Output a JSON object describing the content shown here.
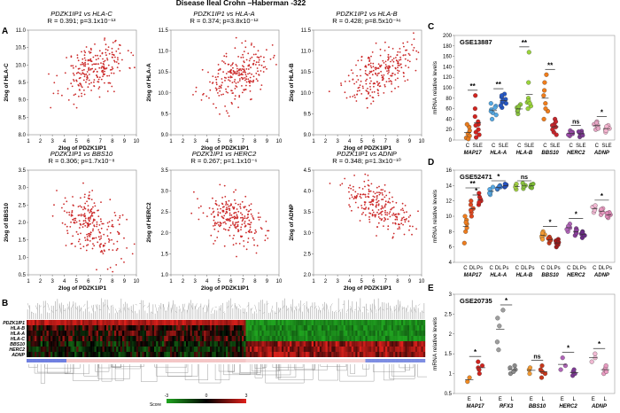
{
  "figure_title": "Disease Ileal Crohn –Haberman -322",
  "panel_letters": {
    "a": "A",
    "b": "B",
    "c": "C",
    "d": "D",
    "e": "E"
  },
  "colors": {
    "scatter": "#cc2a2a",
    "box_border": "#000000",
    "heat_high": "#e0201b",
    "heat_low": "#1fa51f",
    "heat_mid": "#000000"
  },
  "chart_data": [
    {
      "type": "scatter",
      "panel": "A",
      "x_label": "2log of PDZK1IP1",
      "plots": [
        {
          "pair": "PDZK1IP1 vs HLA-C",
          "stat": "R = 0.391; p=3.1x10⁻¹³",
          "ylabel": "2log of HLA-C",
          "xlabel": "2log of PDZK1IP1",
          "xlim": [
            1,
            10
          ],
          "ylim": [
            8.0,
            11.0
          ],
          "xticks": [
            "1",
            "2",
            "3",
            "4",
            "5",
            "6",
            "7",
            "8",
            "9",
            "10"
          ],
          "yticks": [
            "8.0",
            "8.5",
            "9.0",
            "9.5",
            "10.0",
            "10.5",
            "11.0"
          ],
          "slope": 0.13,
          "center": [
            6.5,
            9.9
          ],
          "spread": 0.38,
          "seed": 11
        },
        {
          "pair": "PDZK1IP1 vs HLA-A",
          "stat": "R = 0.374; p=3.8x10⁻¹²",
          "ylabel": "2log of HLA-A",
          "xlabel": "2log of PDZK1IP1",
          "xlim": [
            1,
            10
          ],
          "ylim": [
            9.0,
            11.5
          ],
          "xticks": [
            "1",
            "2",
            "3",
            "4",
            "5",
            "6",
            "7",
            "8",
            "9",
            "10"
          ],
          "yticks": [
            "9.0",
            "9.5",
            "10.0",
            "10.5",
            "11.0",
            "11.5"
          ],
          "slope": 0.1,
          "center": [
            6.5,
            10.4
          ],
          "spread": 0.3,
          "seed": 23
        },
        {
          "pair": "PDZK1IP1 vs HLA-B",
          "stat": "R = 0.428; p=8.5x10⁻¹⁶",
          "ylabel": "2log of HLA-B",
          "xlabel": "2log of PDZK1IP1",
          "xlim": [
            1,
            10
          ],
          "ylim": [
            9.0,
            11.5
          ],
          "xticks": [
            "1",
            "2",
            "3",
            "4",
            "5",
            "6",
            "7",
            "8",
            "9",
            "10"
          ],
          "yticks": [
            "9.0",
            "9.5",
            "10.0",
            "10.5",
            "11.0",
            "11.5"
          ],
          "slope": 0.14,
          "center": [
            6.5,
            10.5
          ],
          "spread": 0.3,
          "seed": 37
        },
        {
          "pair": "PDZK1IP1 vs BBS10",
          "stat": "R = 0.306; p=1.7x10⁻⁸",
          "ylabel": "2log of BBS10",
          "xlabel": "2log of PDZK1IP1",
          "xlim": [
            1,
            10
          ],
          "ylim": [
            0.5,
            3.5
          ],
          "xticks": [
            "1",
            "2",
            "3",
            "4",
            "5",
            "6",
            "7",
            "8",
            "9",
            "10"
          ],
          "yticks": [
            "0.5",
            "1.0",
            "1.5",
            "2.0",
            "2.5",
            "3.0",
            "3.5"
          ],
          "slope": -0.14,
          "center": [
            6.3,
            1.9
          ],
          "spread": 0.42,
          "seed": 41
        },
        {
          "pair": "PDZK1IP1 vs HERC2",
          "stat": "R = 0.267; p=1.1x10⁻⁶",
          "ylabel": "2log of HERC2",
          "xlabel": "2log of PDZK1IP1",
          "xlim": [
            1,
            10
          ],
          "ylim": [
            1.0,
            3.5
          ],
          "xticks": [
            "1",
            "2",
            "3",
            "4",
            "5",
            "6",
            "7",
            "8",
            "9",
            "10"
          ],
          "yticks": [
            "1.0",
            "1.5",
            "2.0",
            "2.5",
            "3.0",
            "3.5"
          ],
          "slope": -0.09,
          "center": [
            6.3,
            2.3
          ],
          "spread": 0.3,
          "seed": 53
        },
        {
          "pair": "PDZK1IP1 vs ADNP",
          "stat": "R = 0.348; p=1.3x10⁻¹⁰",
          "ylabel": "2log of ADNP",
          "xlabel": "2log of PDZK1IP1",
          "xlim": [
            1,
            10
          ],
          "ylim": [
            2.0,
            4.5
          ],
          "xticks": [
            "1",
            "2",
            "3",
            "4",
            "5",
            "6",
            "7",
            "8",
            "9",
            "10"
          ],
          "yticks": [
            "2.0",
            "2.5",
            "3.0",
            "3.5",
            "4.0",
            "4.5"
          ],
          "slope": -0.14,
          "center": [
            6.3,
            3.6
          ],
          "spread": 0.25,
          "seed": 67
        }
      ]
    },
    {
      "type": "heatmap",
      "panel": "B",
      "rows": [
        "PDZK1IP1",
        "HLA-B",
        "HLA-A",
        "HLA-C",
        "BBS10",
        "HERC2",
        "ADNP"
      ],
      "columns": 322,
      "colorbar": {
        "label": "Score",
        "ticks": [
          "-3",
          "0",
          "3"
        ]
      }
    },
    {
      "type": "scatter",
      "panel": "C",
      "dataset": "GSE13887",
      "ylabel": "mRNA relative levels",
      "ylim": [
        0,
        200
      ],
      "yticks": [
        "0",
        "20",
        "40",
        "60",
        "80",
        "100",
        "120",
        "140",
        "160",
        "180",
        "200"
      ],
      "group_labels": [
        "C",
        "SLE"
      ],
      "genes": [
        {
          "name": "MAP17",
          "sig": "**",
          "groups": [
            {
              "label": "C",
              "color": "#e87c1e",
              "values": [
                4,
                12,
                18,
                25,
                30,
                8,
                2
              ]
            },
            {
              "label": "SLE",
              "color": "#d2231e",
              "values": [
                5,
                15,
                30,
                45,
                60,
                85,
                20,
                10,
                35,
                28
              ]
            }
          ]
        },
        {
          "name": "HLA-A",
          "sig": "**",
          "groups": [
            {
              "label": "C",
              "color": "#53a8e4",
              "values": [
                40,
                52,
                58,
                65,
                70,
                55,
                48,
                62
              ]
            },
            {
              "label": "SLE",
              "color": "#2557c4",
              "values": [
                62,
                70,
                78,
                82,
                88,
                72,
                66,
                85,
                75
              ]
            }
          ]
        },
        {
          "name": "HLA-B",
          "sig": "**",
          "groups": [
            {
              "label": "C",
              "color": "#8cc63f",
              "values": [
                50,
                55,
                60,
                62,
                68,
                57,
                64
              ]
            },
            {
              "label": "SLE",
              "color": "#9ad43a",
              "values": [
                60,
                65,
                72,
                80,
                110,
                168,
                75,
                70
              ]
            }
          ]
        },
        {
          "name": "BBS10",
          "sig": "**",
          "groups": [
            {
              "label": "C",
              "color": "#f07d1b",
              "values": [
                40,
                55,
                70,
                85,
                95,
                110,
                125,
                60
              ]
            },
            {
              "label": "SLE",
              "color": "#c8252b",
              "values": [
                15,
                25,
                30,
                40,
                20,
                35,
                10,
                28
              ]
            }
          ]
        },
        {
          "name": "HERC2",
          "sig": "ns",
          "groups": [
            {
              "label": "C",
              "color": "#9a4aa8",
              "values": [
                8,
                12,
                15,
                18,
                10,
                14
              ]
            },
            {
              "label": "SLE",
              "color": "#7d3a93",
              "values": [
                6,
                10,
                14,
                17,
                12,
                9,
                16
              ]
            }
          ]
        },
        {
          "name": "ADNP",
          "sig": "*",
          "groups": [
            {
              "label": "C",
              "color": "#e7a6c4",
              "values": [
                20,
                25,
                30,
                35,
                28,
                22,
                33
              ]
            },
            {
              "label": "SLE",
              "color": "#f4b4cf",
              "values": [
                15,
                20,
                24,
                28,
                18,
                22,
                26
              ]
            }
          ]
        }
      ]
    },
    {
      "type": "scatter",
      "panel": "D",
      "dataset": "GSE52471",
      "ylabel": "mRNA relative levels",
      "ylim": [
        4,
        16
      ],
      "yticks": [
        "4",
        "6",
        "8",
        "10",
        "12",
        "14",
        "16"
      ],
      "group_labels": [
        "C",
        "DL",
        "Ps"
      ],
      "genes": [
        {
          "name": "MAP17",
          "sig": "**",
          "sig2": "*",
          "groups": [
            {
              "label": "C",
              "color": "#ee7c1d",
              "values": [
                6.5,
                8,
                9,
                9.5,
                10,
                8.5,
                9.2
              ]
            },
            {
              "label": "DL",
              "color": "#e0481f",
              "values": [
                10,
                10.5,
                11,
                11.5,
                10.8,
                12
              ]
            },
            {
              "label": "Ps",
              "color": "#d2231e",
              "values": [
                11.5,
                12,
                12.5,
                13,
                12.2,
                11.8
              ]
            }
          ]
        },
        {
          "name": "HLA-A",
          "sig": "*",
          "groups": [
            {
              "label": "C",
              "color": "#55a8e3",
              "values": [
                12.8,
                13.2,
                13.5,
                13.8,
                13.0
              ]
            },
            {
              "label": "DL",
              "color": "#3b7fd4",
              "values": [
                13.5,
                13.8,
                14,
                13.6,
                13.9
              ]
            },
            {
              "label": "Ps",
              "color": "#2450c0",
              "values": [
                13.8,
                14,
                14.1,
                13.9,
                14.2
              ]
            }
          ]
        },
        {
          "name": "HLA-B",
          "sig": "ns",
          "groups": [
            {
              "label": "C",
              "color": "#a2cf42",
              "values": [
                13.5,
                14,
                14.2,
                13.8
              ]
            },
            {
              "label": "DL",
              "color": "#8cc63f",
              "values": [
                13.6,
                14,
                14.3,
                13.9
              ]
            },
            {
              "label": "Ps",
              "color": "#7ab833",
              "values": [
                13.8,
                14.1,
                14.2,
                13.7
              ]
            }
          ]
        },
        {
          "name": "BBS10",
          "sig": "*",
          "groups": [
            {
              "label": "C",
              "color": "#f39a32",
              "values": [
                7.2,
                7.6,
                8,
                7.4,
                7.8,
                7.0
              ]
            },
            {
              "label": "DL",
              "color": "#c8381b",
              "values": [
                6.5,
                7,
                7.3,
                6.8,
                7.1,
                6.9
              ]
            },
            {
              "label": "Ps",
              "color": "#a21c1c",
              "values": [
                6,
                6.5,
                6.8,
                7,
                6.3,
                6.6
              ]
            }
          ]
        },
        {
          "name": "HERC2",
          "sig": "*",
          "groups": [
            {
              "label": "C",
              "color": "#b064b8",
              "values": [
                8,
                8.5,
                9,
                8.7,
                8.3
              ]
            },
            {
              "label": "DL",
              "color": "#8a3e9a",
              "values": [
                7.5,
                8,
                8.4,
                7.8,
                8.2
              ]
            },
            {
              "label": "Ps",
              "color": "#6a2c86",
              "values": [
                7.2,
                7.7,
                8,
                7.5,
                7.9
              ]
            }
          ]
        },
        {
          "name": "ADNP",
          "sig": "*",
          "groups": [
            {
              "label": "C",
              "color": "#f1b9d3",
              "values": [
                10.5,
                11,
                11.2,
                10.8,
                11.4
              ]
            },
            {
              "label": "DL",
              "color": "#e89ac0",
              "values": [
                10.2,
                10.7,
                11,
                10.5,
                10.9
              ]
            },
            {
              "label": "Ps",
              "color": "#dc86b4",
              "values": [
                9.8,
                10.2,
                10.5,
                10,
                10.4
              ]
            }
          ]
        }
      ]
    },
    {
      "type": "scatter",
      "panel": "E",
      "dataset": "GSE20735",
      "ylabel": "mRNA relative levels",
      "ylim": [
        0.5,
        3.0
      ],
      "yticks": [
        "0.5",
        "1",
        "1.5",
        "2",
        "2.5",
        "3"
      ],
      "group_labels": [
        "E",
        "L"
      ],
      "genes": [
        {
          "name": "MAP17",
          "sig": "*",
          "groups": [
            {
              "label": "E",
              "color": "#f08a22",
              "values": [
                0.8,
                0.9
              ]
            },
            {
              "label": "L",
              "color": "#d2231e",
              "values": [
                1.0,
                1.1,
                1.2,
                1.3,
                1.15
              ]
            }
          ]
        },
        {
          "name": "RFX3",
          "sig": "*",
          "groups": [
            {
              "label": "E",
              "color": "#9e9e9e",
              "values": [
                1.6,
                2.2,
                2.4,
                2.6,
                1.8
              ]
            },
            {
              "label": "L",
              "color": "#8a8a8a",
              "values": [
                1.0,
                1.1,
                1.2,
                1.15,
                1.05
              ]
            }
          ]
        },
        {
          "name": "BBS10",
          "sig": "ns",
          "groups": [
            {
              "label": "E",
              "color": "#f39a32",
              "values": [
                1.0,
                1.1,
                1.15
              ]
            },
            {
              "label": "L",
              "color": "#c8381b",
              "values": [
                0.9,
                1.0,
                1.1,
                1.2,
                1.05
              ]
            }
          ]
        },
        {
          "name": "HERC2",
          "sig": "*",
          "groups": [
            {
              "label": "E",
              "color": "#b064b8",
              "values": [
                1.1,
                1.2,
                1.4
              ]
            },
            {
              "label": "L",
              "color": "#7d3a93",
              "values": [
                0.95,
                1.0,
                1.05,
                1.1
              ]
            }
          ]
        },
        {
          "name": "ADNP",
          "sig": "*",
          "groups": [
            {
              "label": "E",
              "color": "#f1b9d3",
              "values": [
                1.3,
                1.4,
                1.5
              ]
            },
            {
              "label": "L",
              "color": "#e89ac0",
              "values": [
                1.0,
                1.1,
                1.15,
                1.2,
                1.05
              ]
            }
          ]
        }
      ]
    }
  ]
}
